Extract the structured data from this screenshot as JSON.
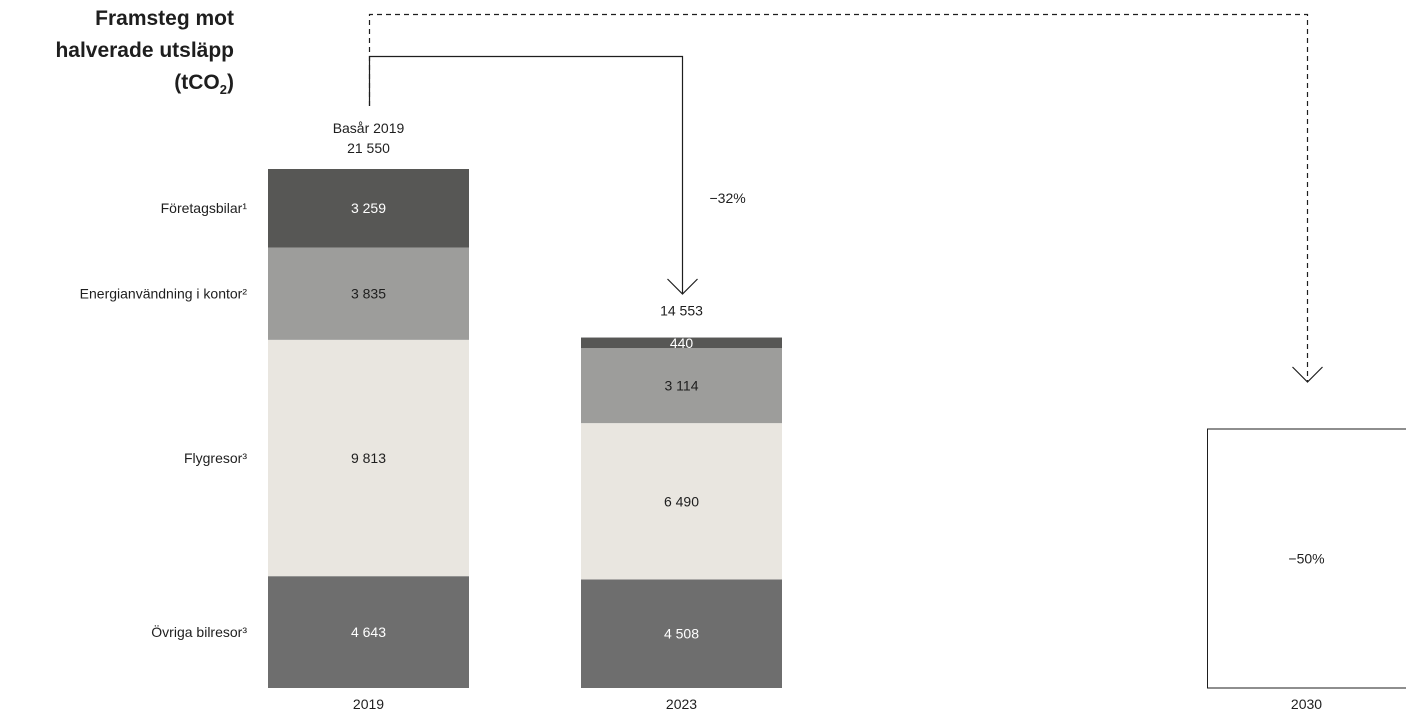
{
  "chart_data": {
    "type": "bar",
    "stacked": true,
    "title": {
      "line1": "Framsteg mot",
      "line2": "halverade utsläpp",
      "line3_prefix": "(tCO",
      "line3_sub": "2",
      "line3_suffix": ")"
    },
    "categories": [
      "2019",
      "2023",
      "2030"
    ],
    "series": [
      {
        "name": "Övriga bilresor³",
        "color": "#6e6e6e",
        "label_color": "#ffffff",
        "values": [
          4643,
          4508,
          null
        ],
        "value_labels": [
          "4 643",
          "4 508",
          ""
        ]
      },
      {
        "name": "Flygresor³",
        "color": "#e9e6e0",
        "label_color": "#1e1e1e",
        "values": [
          9813,
          6490,
          null
        ],
        "value_labels": [
          "9 813",
          "6 490",
          ""
        ]
      },
      {
        "name": "Energianvändning i kontor²",
        "color": "#9d9d9b",
        "label_color": "#1e1e1e",
        "values": [
          3835,
          3114,
          null
        ],
        "value_labels": [
          "3 835",
          "3 114",
          ""
        ]
      },
      {
        "name": "Företagsbilar¹",
        "color": "#575755",
        "label_color": "#ffffff",
        "values": [
          3259,
          440,
          null
        ],
        "value_labels": [
          "3 259",
          "440",
          ""
        ]
      }
    ],
    "totals": [
      {
        "category": "2019",
        "value": 21550,
        "label_line1": "Basår 2019",
        "label_line2": "21 550"
      },
      {
        "category": "2023",
        "value": 14553,
        "label_line1": "",
        "label_line2": "14 553"
      }
    ],
    "target": {
      "category": "2030",
      "value": 10775,
      "label": "−50%"
    },
    "arrows": [
      {
        "from": "2019",
        "to": "2023",
        "label": "−32%",
        "style": "solid"
      },
      {
        "from": "2019",
        "to": "2030",
        "label": "",
        "style": "dashed"
      }
    ],
    "ylim": [
      0,
      21550
    ],
    "grid": false,
    "legend": "left"
  }
}
